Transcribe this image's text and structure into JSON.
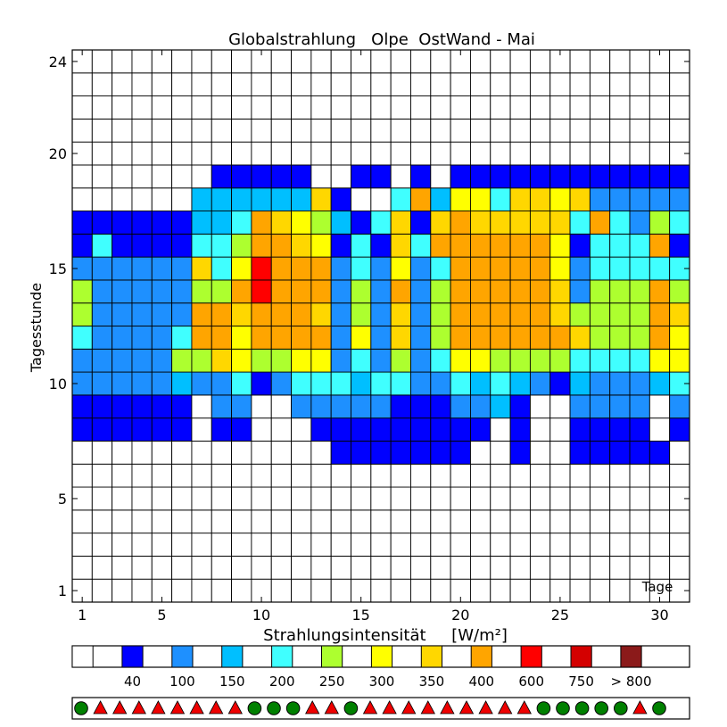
{
  "chart_data": {
    "type": "heatmap",
    "title": "Globalstrahlung   Olpe  OstWand - Mai",
    "xlabel": "Tage",
    "ylabel": "Tagesstunde",
    "x_ticks": [
      1,
      5,
      10,
      15,
      20,
      25,
      30
    ],
    "y_ticks": [
      1,
      5,
      10,
      15,
      20,
      24
    ],
    "xlim": [
      1,
      31
    ],
    "ylim": [
      1,
      24
    ],
    "colorbar": {
      "title": "Strahlungsintensität     [W/m²]",
      "labels": [
        "",
        "40",
        "100",
        "150",
        "200",
        "250",
        "300",
        "350",
        "400",
        "600",
        "750",
        "> 800"
      ],
      "colors": [
        "#ffffff",
        "#0000ff",
        "#1e90ff",
        "#00bfff",
        "#40ffff",
        "#adff2f",
        "#ffff00",
        "#ffd700",
        "#ffa500",
        "#ff0000",
        "#d40000",
        "#8b1a1a"
      ]
    },
    "day_markers": [
      "circle",
      "triangle",
      "triangle",
      "triangle",
      "triangle",
      "triangle",
      "triangle",
      "triangle",
      "triangle",
      "circle",
      "circle",
      "circle",
      "triangle",
      "triangle",
      "circle",
      "triangle",
      "triangle",
      "triangle",
      "triangle",
      "triangle",
      "triangle",
      "triangle",
      "triangle",
      "triangle",
      "circle",
      "circle",
      "circle",
      "circle",
      "circle",
      "triangle",
      "circle"
    ],
    "marker_colors": {
      "circle": "#008000",
      "triangle": "#ee0000"
    },
    "hour_rows": [
      {
        "hour": 19,
        "days": "0000000111110011010111111111111"
      },
      {
        "hour": 18,
        "days": "0000003333337100483664776722222"
      },
      {
        "hour": 17,
        "days": "1111113348765314717877777484254"
      },
      {
        "hour": 16,
        "days": "1411114458876141748888886144481"
      },
      {
        "hour": 15,
        "days": "2222227469888242624888886244444"
      },
      {
        "hour": 14,
        "days": "5222225589888252825888887255585"
      },
      {
        "hour": 13,
        "days": "5222228878887252725888887555587"
      },
      {
        "hour": 12,
        "days": "4222248868888262725888888755586"
      },
      {
        "hour": 11,
        "days": "2222255765566242524665555444466"
      },
      {
        "hour": 10,
        "days": "2222232241244434422434321322234"
      },
      {
        "hour": 9,
        "days": "1111110220022222111223100222202"
      },
      {
        "hour": 8,
        "days": "1111110110001111111110100111101"
      },
      {
        "hour": 7,
        "days": "0000000000000111111100100111110"
      }
    ]
  }
}
